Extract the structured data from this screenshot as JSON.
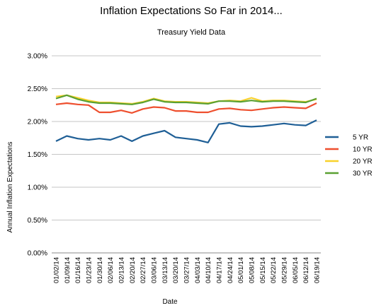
{
  "chart_data": {
    "type": "line",
    "title": "Inflation Expectations So Far in 2014...",
    "subtitle": "Treasury Yield Data",
    "xlabel": "Date",
    "ylabel": "Annual Inflation Expectations",
    "ylim": [
      0,
      3
    ],
    "yticks": [
      "0.00%",
      "0.50%",
      "1.00%",
      "1.50%",
      "2.00%",
      "2.50%",
      "3.00%"
    ],
    "grid": true,
    "legend_position": "right",
    "x": [
      "01/02/14",
      "01/09/14",
      "01/16/14",
      "01/23/14",
      "01/30/14",
      "02/06/14",
      "02/13/14",
      "02/20/14",
      "02/27/14",
      "03/06/14",
      "03/13/14",
      "03/20/14",
      "03/27/14",
      "04/03/14",
      "04/10/14",
      "04/17/14",
      "04/24/14",
      "05/01/14",
      "05/08/14",
      "05/15/14",
      "05/22/14",
      "05/29/14",
      "06/05/14",
      "06/12/14",
      "06/19/14"
    ],
    "series": [
      {
        "name": "5 YR",
        "color": "#1f5f96",
        "values": [
          1.7,
          1.78,
          1.74,
          1.72,
          1.74,
          1.72,
          1.78,
          1.7,
          1.78,
          1.82,
          1.86,
          1.76,
          1.74,
          1.72,
          1.68,
          1.96,
          1.98,
          1.93,
          1.92,
          1.93,
          1.95,
          1.97,
          1.95,
          1.94,
          2.02
        ]
      },
      {
        "name": "10 YR",
        "color": "#ee4f2e",
        "values": [
          2.26,
          2.28,
          2.26,
          2.25,
          2.14,
          2.14,
          2.17,
          2.13,
          2.19,
          2.22,
          2.21,
          2.16,
          2.16,
          2.14,
          2.14,
          2.19,
          2.2,
          2.18,
          2.17,
          2.19,
          2.21,
          2.22,
          2.21,
          2.2,
          2.28
        ]
      },
      {
        "name": "20 YR",
        "color": "#f8d12a",
        "values": [
          2.38,
          2.4,
          2.36,
          2.32,
          2.29,
          2.29,
          2.28,
          2.27,
          2.3,
          2.35,
          2.31,
          2.3,
          2.3,
          2.29,
          2.28,
          2.31,
          2.32,
          2.31,
          2.36,
          2.31,
          2.32,
          2.32,
          2.31,
          2.3,
          2.34
        ]
      },
      {
        "name": "30 YR",
        "color": "#5aa032",
        "values": [
          2.35,
          2.4,
          2.34,
          2.3,
          2.28,
          2.28,
          2.27,
          2.26,
          2.29,
          2.34,
          2.3,
          2.29,
          2.29,
          2.28,
          2.27,
          2.31,
          2.31,
          2.3,
          2.32,
          2.3,
          2.31,
          2.31,
          2.3,
          2.29,
          2.35
        ]
      }
    ]
  }
}
